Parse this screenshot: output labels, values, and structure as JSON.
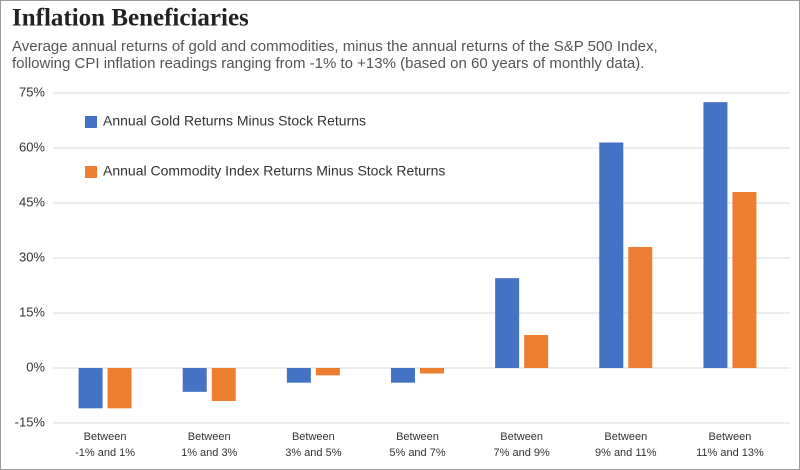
{
  "chart_data": {
    "type": "bar",
    "title": "Inflation Beneficiaries",
    "subtitle": [
      "Average annual returns of gold and commodities, minus the annual returns of the S&P 500 Index,",
      "following CPI inflation readings ranging from -1% to +13% (based on 60 years of monthly data)."
    ],
    "categories": [
      [
        "Between",
        "-1% and 1%"
      ],
      [
        "Between",
        "1% and 3%"
      ],
      [
        "Between",
        "3% and 5%"
      ],
      [
        "Between",
        "5% and 7%"
      ],
      [
        "Between",
        "7% and 9%"
      ],
      [
        "Between",
        "9% and 11%"
      ],
      [
        "Between",
        "11% and 13%"
      ]
    ],
    "series": [
      {
        "name": "Annual Gold Returns Minus Stock Returns",
        "color": "#4472c4",
        "values": [
          -11,
          -6.5,
          -4,
          -4,
          24.5,
          61.5,
          72.5
        ]
      },
      {
        "name": "Annual Commodity Index Returns Minus Stock Returns",
        "color": "#ed7d31",
        "values": [
          -11,
          -9,
          -2,
          -1.5,
          9,
          33,
          48
        ]
      }
    ],
    "ylim": [
      -15,
      75
    ],
    "yticks": [
      {
        "value": -15,
        "label": "-15%"
      },
      {
        "value": 0,
        "label": "0%"
      },
      {
        "value": 15,
        "label": "15%"
      },
      {
        "value": 30,
        "label": "30%"
      },
      {
        "value": 45,
        "label": "45%"
      },
      {
        "value": 60,
        "label": "60%"
      },
      {
        "value": 75,
        "label": "75%"
      }
    ],
    "grid": true,
    "legend": "top-left"
  }
}
